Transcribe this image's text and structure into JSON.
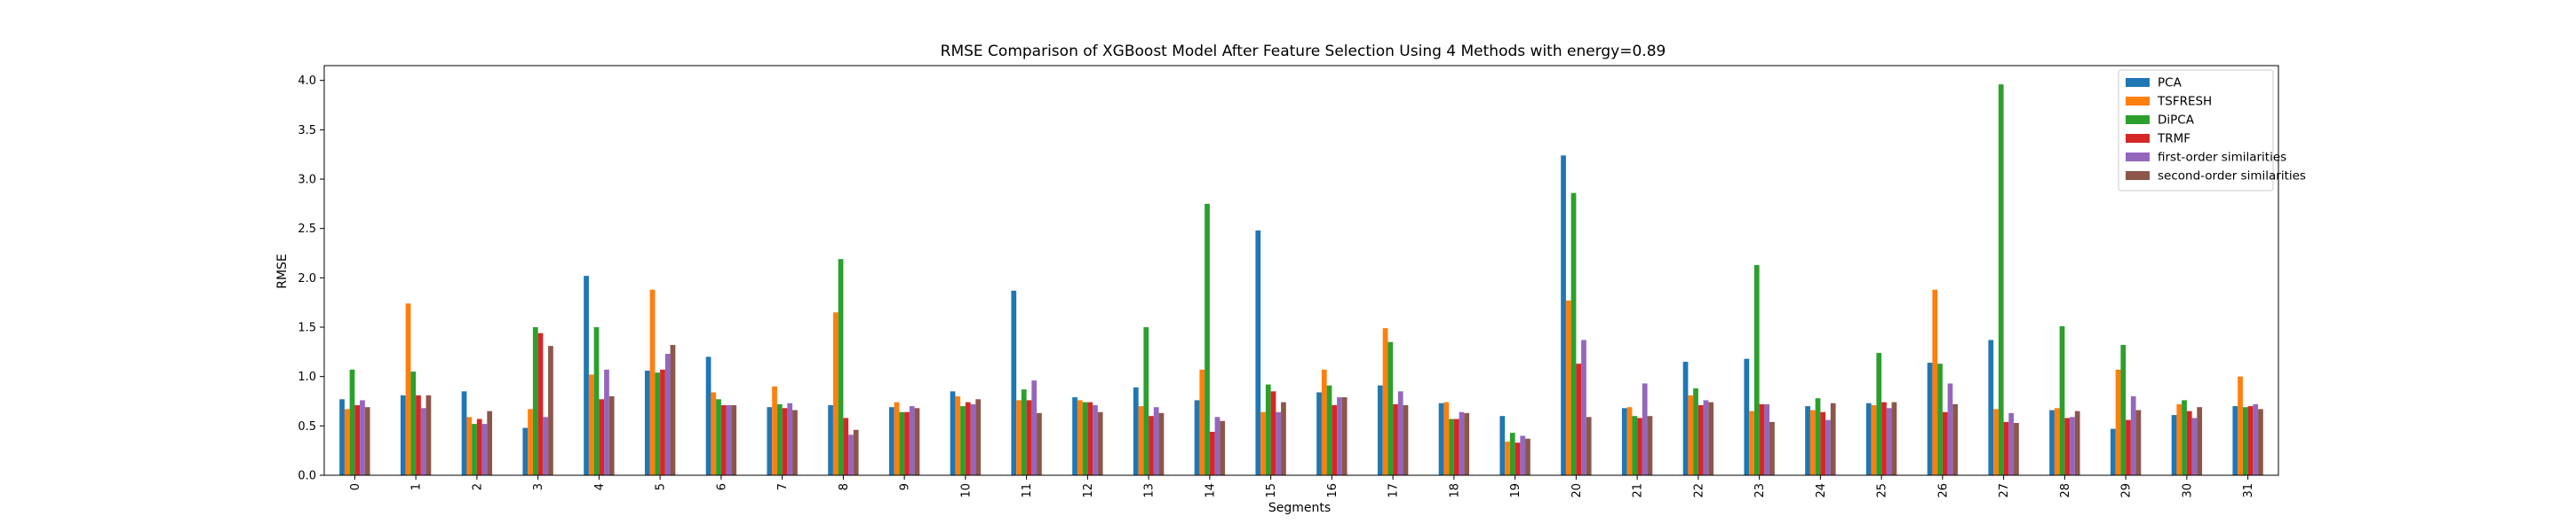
{
  "chart_data": {
    "type": "bar",
    "title": "RMSE Comparison of XGBoost Model After Feature Selection Using 4 Methods with energy=0.89",
    "xlabel": "Segments",
    "ylabel": "RMSE",
    "ylim": [
      0,
      4.15
    ],
    "yticks": [
      0.0,
      0.5,
      1.0,
      1.5,
      2.0,
      2.5,
      3.0,
      3.5,
      4.0
    ],
    "ytick_labels": [
      "0.0",
      "0.5",
      "1.0",
      "1.5",
      "2.0",
      "2.5",
      "3.0",
      "3.5",
      "4.0"
    ],
    "grid": false,
    "legend_position": "top-right",
    "categories": [
      "0",
      "1",
      "2",
      "3",
      "4",
      "5",
      "6",
      "7",
      "8",
      "9",
      "10",
      "11",
      "12",
      "13",
      "14",
      "15",
      "16",
      "17",
      "18",
      "19",
      "20",
      "21",
      "22",
      "23",
      "24",
      "25",
      "26",
      "27",
      "28",
      "29",
      "30",
      "31"
    ],
    "series": [
      {
        "name": "PCA",
        "color": "#1f77b4",
        "values": [
          0.77,
          0.81,
          0.85,
          0.48,
          2.02,
          1.06,
          1.2,
          0.69,
          0.71,
          0.69,
          0.85,
          1.87,
          0.79,
          0.89,
          0.76,
          2.48,
          0.84,
          0.91,
          0.73,
          0.6,
          3.24,
          0.68,
          1.15,
          1.18,
          0.7,
          0.73,
          1.14,
          1.37,
          0.66,
          0.47,
          0.61,
          0.7
        ]
      },
      {
        "name": "TSFRESH",
        "color": "#ff7f0e",
        "values": [
          0.67,
          1.74,
          0.59,
          0.67,
          1.02,
          1.88,
          0.84,
          0.9,
          1.65,
          0.74,
          0.8,
          0.76,
          0.76,
          0.7,
          1.07,
          0.64,
          1.07,
          1.49,
          0.74,
          0.34,
          1.77,
          0.69,
          0.81,
          0.65,
          0.66,
          0.71,
          1.88,
          0.67,
          0.68,
          1.07,
          0.72,
          1.0
        ]
      },
      {
        "name": "DiPCA",
        "color": "#2ca02c",
        "values": [
          1.07,
          1.05,
          0.52,
          1.5,
          1.5,
          1.04,
          0.77,
          0.72,
          2.19,
          0.64,
          0.7,
          0.87,
          0.74,
          1.5,
          2.75,
          0.92,
          0.91,
          1.35,
          0.57,
          0.43,
          2.86,
          0.6,
          0.88,
          2.13,
          0.78,
          1.24,
          1.13,
          3.96,
          1.51,
          1.32,
          0.76,
          0.69
        ]
      },
      {
        "name": "TRMF",
        "color": "#d62728",
        "values": [
          0.71,
          0.81,
          0.57,
          1.44,
          0.77,
          1.07,
          0.71,
          0.68,
          0.58,
          0.64,
          0.74,
          0.76,
          0.74,
          0.6,
          0.44,
          0.85,
          0.71,
          0.72,
          0.57,
          0.33,
          1.13,
          0.58,
          0.71,
          0.72,
          0.64,
          0.74,
          0.64,
          0.54,
          0.58,
          0.56,
          0.65,
          0.7
        ]
      },
      {
        "name": "first-order similarities",
        "color": "#9467bd",
        "values": [
          0.76,
          0.68,
          0.52,
          0.59,
          1.07,
          1.23,
          0.71,
          0.73,
          0.41,
          0.7,
          0.72,
          0.96,
          0.71,
          0.69,
          0.59,
          0.64,
          0.79,
          0.85,
          0.64,
          0.4,
          1.37,
          0.93,
          0.76,
          0.72,
          0.56,
          0.68,
          0.93,
          0.63,
          0.59,
          0.8,
          0.58,
          0.72
        ]
      },
      {
        "name": "second-order similarities",
        "color": "#8c564b",
        "values": [
          0.69,
          0.81,
          0.65,
          1.31,
          0.8,
          1.32,
          0.71,
          0.66,
          0.46,
          0.68,
          0.77,
          0.63,
          0.64,
          0.63,
          0.55,
          0.74,
          0.79,
          0.71,
          0.63,
          0.37,
          0.59,
          0.6,
          0.74,
          0.54,
          0.73,
          0.74,
          0.72,
          0.53,
          0.65,
          0.66,
          0.69,
          0.67
        ]
      }
    ]
  }
}
